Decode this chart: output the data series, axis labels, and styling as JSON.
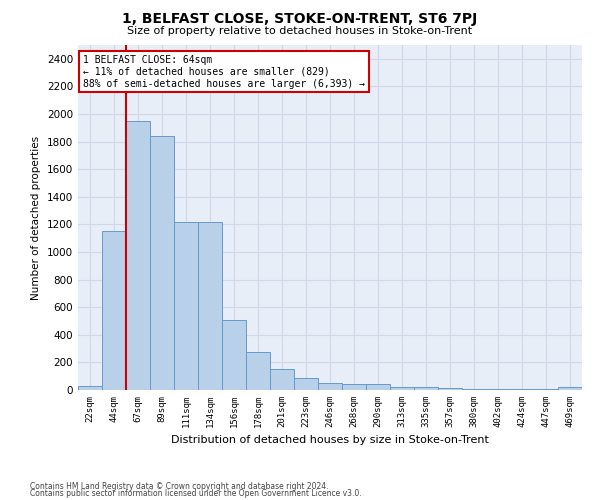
{
  "title": "1, BELFAST CLOSE, STOKE-ON-TRENT, ST6 7PJ",
  "subtitle": "Size of property relative to detached houses in Stoke-on-Trent",
  "xlabel": "Distribution of detached houses by size in Stoke-on-Trent",
  "ylabel": "Number of detached properties",
  "categories": [
    "22sqm",
    "44sqm",
    "67sqm",
    "89sqm",
    "111sqm",
    "134sqm",
    "156sqm",
    "178sqm",
    "201sqm",
    "223sqm",
    "246sqm",
    "268sqm",
    "290sqm",
    "313sqm",
    "335sqm",
    "357sqm",
    "380sqm",
    "402sqm",
    "424sqm",
    "447sqm",
    "469sqm"
  ],
  "values": [
    30,
    1150,
    1950,
    1840,
    1220,
    1220,
    510,
    275,
    155,
    85,
    50,
    45,
    40,
    20,
    20,
    15,
    10,
    10,
    10,
    10,
    20
  ],
  "bar_color": "#b8d0e8",
  "bar_edge_color": "#6699cc",
  "annotation_text_line1": "1 BELFAST CLOSE: 64sqm",
  "annotation_text_line2": "← 11% of detached houses are smaller (829)",
  "annotation_text_line3": "88% of semi-detached houses are larger (6,393) →",
  "annotation_box_color": "#ffffff",
  "annotation_box_edge_color": "#cc0000",
  "vline_color": "#cc0000",
  "vline_x_index": 2,
  "ylim": [
    0,
    2500
  ],
  "yticks": [
    0,
    200,
    400,
    600,
    800,
    1000,
    1200,
    1400,
    1600,
    1800,
    2000,
    2200,
    2400
  ],
  "grid_color": "#d0d8e8",
  "bg_color": "#e8eef8",
  "footer1": "Contains HM Land Registry data © Crown copyright and database right 2024.",
  "footer2": "Contains public sector information licensed under the Open Government Licence v3.0."
}
